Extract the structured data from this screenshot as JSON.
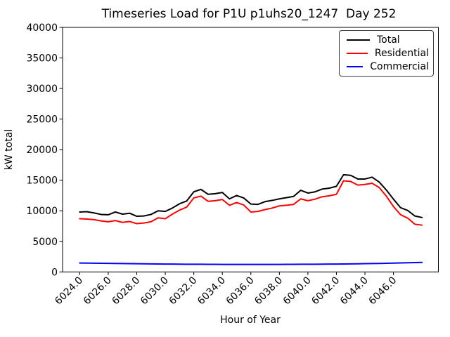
{
  "figure": {
    "title": "Timeseries Load for P1U p1uhs20_1247  Day 252",
    "xlabel": "Hour of Year",
    "ylabel": "kW total"
  },
  "legend": {
    "entries": [
      {
        "label": "Total",
        "color": "#000000"
      },
      {
        "label": "Residential",
        "color": "#ff0000"
      },
      {
        "label": "Commercial",
        "color": "#0000ff"
      }
    ],
    "position": "upper right"
  },
  "chart_data": {
    "type": "line",
    "title": "Timeseries Load for P1U p1uhs20_1247  Day 252",
    "xlabel": "Hour of Year",
    "ylabel": "kW total",
    "xlim": [
      6022.8,
      6049.15
    ],
    "ylim": [
      0,
      40000
    ],
    "grid": false,
    "legend_position": "upper right",
    "xtick_labels": [
      "6024.0",
      "6026.0",
      "6028.0",
      "6030.0",
      "6032.0",
      "6034.0",
      "6036.0",
      "6038.0",
      "6040.0",
      "6042.0",
      "6044.0",
      "6046.0"
    ],
    "xtick_values": [
      6024,
      6026,
      6028,
      6030,
      6032,
      6034,
      6036,
      6038,
      6040,
      6042,
      6044,
      6046
    ],
    "xtick_rotation": 45,
    "ytick_labels": [
      "0",
      "5000",
      "10000",
      "15000",
      "20000",
      "25000",
      "30000",
      "35000",
      "40000"
    ],
    "ytick_values": [
      0,
      5000,
      10000,
      15000,
      20000,
      25000,
      30000,
      35000,
      40000
    ],
    "x": [
      6024.0,
      6024.5,
      6025.0,
      6025.5,
      6026.0,
      6026.5,
      6027.0,
      6027.5,
      6028.0,
      6028.5,
      6029.0,
      6029.5,
      6030.0,
      6030.5,
      6031.0,
      6031.5,
      6032.0,
      6032.5,
      6033.0,
      6033.5,
      6034.0,
      6034.5,
      6035.0,
      6035.5,
      6036.0,
      6036.5,
      6037.0,
      6037.5,
      6038.0,
      6038.5,
      6039.0,
      6039.5,
      6040.0,
      6040.5,
      6041.0,
      6041.5,
      6042.0,
      6042.5,
      6043.0,
      6043.5,
      6044.0,
      6044.5,
      6045.0,
      6045.5,
      6046.0,
      6046.5,
      6047.0,
      6047.5,
      6048.0
    ],
    "series": [
      {
        "name": "Total",
        "color": "#000000",
        "values": [
          9800,
          9850,
          9650,
          9400,
          9350,
          9800,
          9450,
          9600,
          9100,
          9150,
          9400,
          10000,
          9900,
          10450,
          11150,
          11600,
          13100,
          13500,
          12700,
          12800,
          13000,
          11950,
          12500,
          12100,
          11100,
          11050,
          11500,
          11700,
          11950,
          12150,
          12350,
          13350,
          12900,
          13100,
          13550,
          13700,
          14000,
          15900,
          15800,
          15200,
          15200,
          15500,
          14700,
          13400,
          11900,
          10500,
          10050,
          9150,
          8900
        ]
      },
      {
        "name": "Residential",
        "color": "#ff0000",
        "values": [
          8700,
          8650,
          8550,
          8350,
          8200,
          8400,
          8100,
          8250,
          7900,
          8000,
          8200,
          8850,
          8700,
          9450,
          10100,
          10600,
          12100,
          12400,
          11550,
          11650,
          11850,
          10900,
          11350,
          10950,
          9800,
          9900,
          10200,
          10450,
          10800,
          10900,
          11050,
          11950,
          11650,
          11900,
          12300,
          12450,
          12700,
          14900,
          14800,
          14200,
          14300,
          14500,
          13800,
          12400,
          10700,
          9350,
          8800,
          7800,
          7650
        ]
      },
      {
        "name": "Commercial",
        "color": "#0000ff",
        "values": [
          1450,
          1440,
          1430,
          1410,
          1400,
          1390,
          1370,
          1360,
          1340,
          1330,
          1310,
          1300,
          1290,
          1280,
          1270,
          1260,
          1250,
          1250,
          1240,
          1240,
          1230,
          1230,
          1230,
          1230,
          1230,
          1230,
          1230,
          1230,
          1230,
          1240,
          1240,
          1250,
          1250,
          1260,
          1270,
          1280,
          1290,
          1300,
          1310,
          1330,
          1350,
          1370,
          1390,
          1410,
          1440,
          1470,
          1500,
          1530,
          1550
        ]
      }
    ]
  }
}
